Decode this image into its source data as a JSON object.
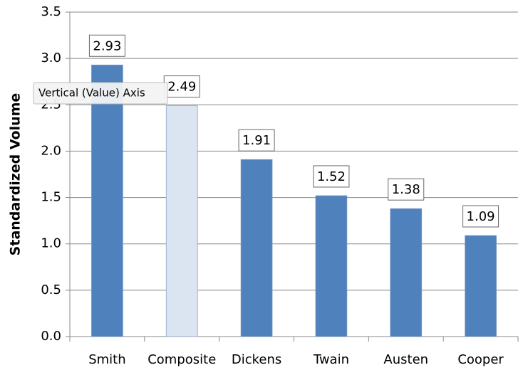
{
  "chart_data": {
    "type": "bar",
    "y_label": "Standardized Volume",
    "categories": [
      "Smith",
      "Composite",
      "Dickens",
      "Twain",
      "Austen",
      "Cooper"
    ],
    "values": [
      2.93,
      2.49,
      1.91,
      1.52,
      1.38,
      1.09
    ],
    "colors": [
      "#4f81bd",
      "#dbe5f1",
      "#4f81bd",
      "#4f81bd",
      "#4f81bd",
      "#4f81bd"
    ],
    "ylim": [
      0,
      3.5
    ],
    "yticks": [
      {
        "value": 0,
        "label": "0.0"
      },
      0.5,
      {
        "value": 1,
        "label": "1.0"
      },
      1.5,
      {
        "value": 2,
        "label": "2.0"
      },
      2.5,
      {
        "value": 3,
        "label": "3.0"
      },
      3.5
    ],
    "grid": true,
    "tooltip": "Vertical (Value) Axis"
  }
}
